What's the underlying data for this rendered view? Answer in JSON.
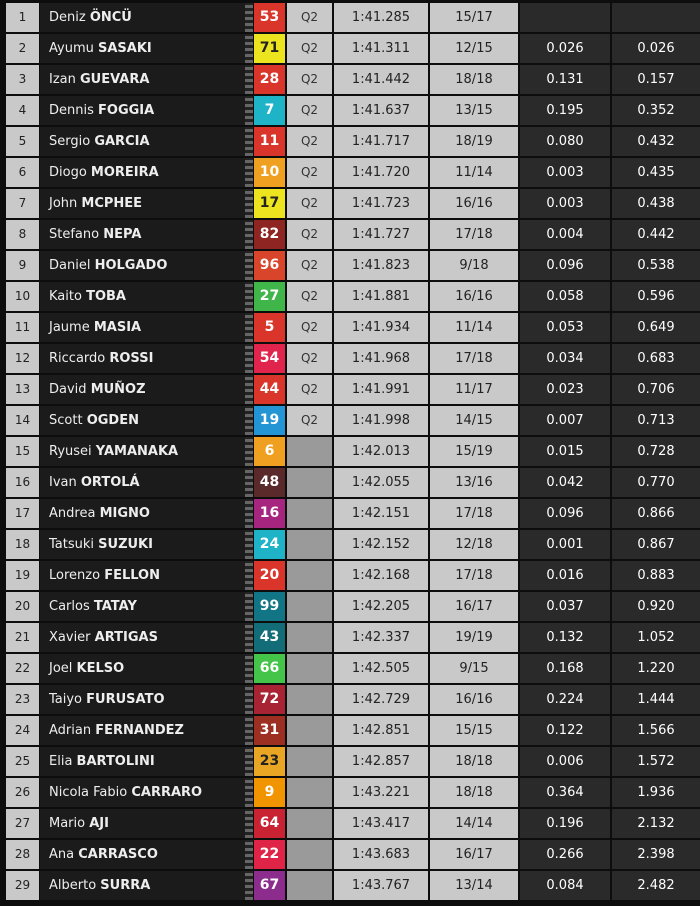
{
  "table": {
    "rows": [
      {
        "pos": "1",
        "first": "Deniz",
        "last": "ÖNCÜ",
        "number": "53",
        "color": "#d9352a",
        "session": "Q2",
        "time": "1:41.285",
        "laps": "15/17"
      },
      {
        "pos": "2",
        "first": "Ayumu",
        "last": "SASAKI",
        "number": "71",
        "color": "#ece41f",
        "session": "Q2",
        "time": "1:41.311",
        "laps": "12/15",
        "gap": "0.026",
        "diff": "0.026"
      },
      {
        "pos": "3",
        "first": "Izan",
        "last": "GUEVARA",
        "number": "28",
        "color": "#d9352a",
        "session": "Q2",
        "time": "1:41.442",
        "laps": "18/18",
        "gap": "0.131",
        "diff": "0.157"
      },
      {
        "pos": "4",
        "first": "Dennis",
        "last": "FOGGIA",
        "number": "7",
        "color": "#1fb3c8",
        "session": "Q2",
        "time": "1:41.637",
        "laps": "13/15",
        "gap": "0.195",
        "diff": "0.352"
      },
      {
        "pos": "5",
        "first": "Sergio",
        "last": "GARCIA",
        "number": "11",
        "color": "#d9352a",
        "session": "Q2",
        "time": "1:41.717",
        "laps": "18/19",
        "gap": "0.080",
        "diff": "0.432"
      },
      {
        "pos": "6",
        "first": "Diogo",
        "last": "MOREIRA",
        "number": "10",
        "color": "#f0a020",
        "session": "Q2",
        "time": "1:41.720",
        "laps": "11/14",
        "gap": "0.003",
        "diff": "0.435"
      },
      {
        "pos": "7",
        "first": "John",
        "last": "MCPHEE",
        "number": "17",
        "color": "#ece41f",
        "session": "Q2",
        "time": "1:41.723",
        "laps": "16/16",
        "gap": "0.003",
        "diff": "0.438"
      },
      {
        "pos": "8",
        "first": "Stefano",
        "last": "NEPA",
        "number": "82",
        "color": "#8e2522",
        "session": "Q2",
        "time": "1:41.727",
        "laps": "17/18",
        "gap": "0.004",
        "diff": "0.442"
      },
      {
        "pos": "9",
        "first": "Daniel",
        "last": "HOLGADO",
        "number": "96",
        "color": "#d8452a",
        "session": "Q2",
        "time": "1:41.823",
        "laps": "9/18",
        "gap": "0.096",
        "diff": "0.538"
      },
      {
        "pos": "10",
        "first": "Kaito",
        "last": "TOBA",
        "number": "27",
        "color": "#3fb54a",
        "session": "Q2",
        "time": "1:41.881",
        "laps": "16/16",
        "gap": "0.058",
        "diff": "0.596"
      },
      {
        "pos": "11",
        "first": "Jaume",
        "last": "MASIA",
        "number": "5",
        "color": "#d9352a",
        "session": "Q2",
        "time": "1:41.934",
        "laps": "11/14",
        "gap": "0.053",
        "diff": "0.649"
      },
      {
        "pos": "12",
        "first": "Riccardo",
        "last": "ROSSI",
        "number": "54",
        "color": "#e0244c",
        "session": "Q2",
        "time": "1:41.968",
        "laps": "17/18",
        "gap": "0.034",
        "diff": "0.683"
      },
      {
        "pos": "13",
        "first": "David",
        "last": "MUÑOZ",
        "number": "44",
        "color": "#d9352a",
        "session": "Q2",
        "time": "1:41.991",
        "laps": "11/17",
        "gap": "0.023",
        "diff": "0.706"
      },
      {
        "pos": "14",
        "first": "Scott",
        "last": "OGDEN",
        "number": "19",
        "color": "#2394d4",
        "session": "Q2",
        "time": "1:41.998",
        "laps": "14/15",
        "gap": "0.007",
        "diff": "0.713"
      },
      {
        "pos": "15",
        "first": "Ryusei",
        "last": "YAMANAKA",
        "number": "6",
        "color": "#f0a020",
        "time": "1:42.013",
        "laps": "15/19",
        "gap": "0.015",
        "diff": "0.728"
      },
      {
        "pos": "16",
        "first": "Ivan",
        "last": "ORTOLÁ",
        "number": "48",
        "color": "#5a2a2a",
        "time": "1:42.055",
        "laps": "13/16",
        "gap": "0.042",
        "diff": "0.770"
      },
      {
        "pos": "17",
        "first": "Andrea",
        "last": "MIGNO",
        "number": "16",
        "color": "#a6267f",
        "time": "1:42.151",
        "laps": "17/18",
        "gap": "0.096",
        "diff": "0.866"
      },
      {
        "pos": "18",
        "first": "Tatsuki",
        "last": "SUZUKI",
        "number": "24",
        "color": "#1fb3c8",
        "time": "1:42.152",
        "laps": "12/18",
        "gap": "0.001",
        "diff": "0.867"
      },
      {
        "pos": "19",
        "first": "Lorenzo",
        "last": "FELLON",
        "number": "20",
        "color": "#d9352a",
        "time": "1:42.168",
        "laps": "17/18",
        "gap": "0.016",
        "diff": "0.883"
      },
      {
        "pos": "20",
        "first": "Carlos",
        "last": "TATAY",
        "number": "99",
        "color": "#127585",
        "time": "1:42.205",
        "laps": "16/17",
        "gap": "0.037",
        "diff": "0.920"
      },
      {
        "pos": "21",
        "first": "Xavier",
        "last": "ARTIGAS",
        "number": "43",
        "color": "#126d78",
        "time": "1:42.337",
        "laps": "19/19",
        "gap": "0.132",
        "diff": "1.052"
      },
      {
        "pos": "22",
        "first": "Joel",
        "last": "KELSO",
        "number": "66",
        "color": "#45c44a",
        "time": "1:42.505",
        "laps": "9/15",
        "gap": "0.168",
        "diff": "1.220"
      },
      {
        "pos": "23",
        "first": "Taiyo",
        "last": "FURUSATO",
        "number": "72",
        "color": "#a82434",
        "time": "1:42.729",
        "laps": "16/16",
        "gap": "0.224",
        "diff": "1.444"
      },
      {
        "pos": "24",
        "first": "Adrian",
        "last": "FERNANDEZ",
        "number": "31",
        "color": "#9c2e22",
        "time": "1:42.851",
        "laps": "15/15",
        "gap": "0.122",
        "diff": "1.566"
      },
      {
        "pos": "25",
        "first": "Elia",
        "last": "BARTOLINI",
        "number": "23",
        "color": "#e8a624",
        "time": "1:42.857",
        "laps": "18/18",
        "gap": "0.006",
        "diff": "1.572"
      },
      {
        "pos": "26",
        "first": "Nicola Fabio",
        "last": "CARRARO",
        "number": "9",
        "color": "#f09400",
        "time": "1:43.221",
        "laps": "18/18",
        "gap": "0.364",
        "diff": "1.936"
      },
      {
        "pos": "27",
        "first": "Mario",
        "last": "AJI",
        "number": "64",
        "color": "#c92333",
        "time": "1:43.417",
        "laps": "14/14",
        "gap": "0.196",
        "diff": "2.132"
      },
      {
        "pos": "28",
        "first": "Ana",
        "last": "CARRASCO",
        "number": "22",
        "color": "#e02448",
        "time": "1:43.683",
        "laps": "16/17",
        "gap": "0.266",
        "diff": "2.398"
      },
      {
        "pos": "29",
        "first": "Alberto",
        "last": "SURRA",
        "number": "67",
        "color": "#8c2c8c",
        "time": "1:43.767",
        "laps": "13/14",
        "gap": "0.084",
        "diff": "2.482"
      }
    ]
  }
}
